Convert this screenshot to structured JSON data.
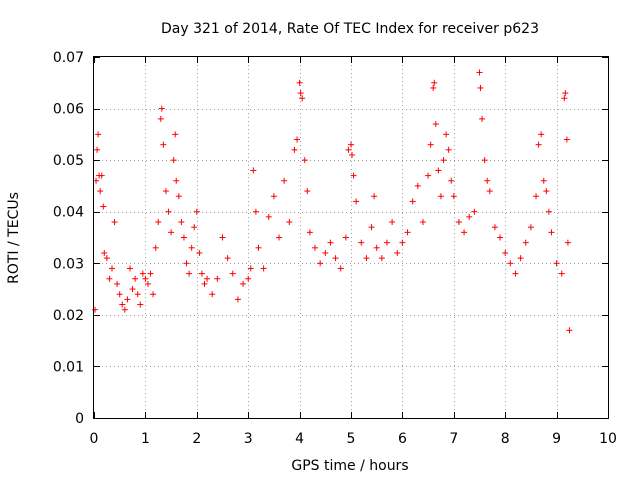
{
  "chart_data": {
    "type": "scatter",
    "title": "Day 321 of 2014, Rate Of TEC Index for receiver p623",
    "xlabel": "GPS time / hours",
    "ylabel": "ROTI / TECUs",
    "xlim": [
      0,
      10
    ],
    "ylim": [
      0,
      0.07
    ],
    "xticks": [
      0,
      1,
      2,
      3,
      4,
      5,
      6,
      7,
      8,
      9,
      10
    ],
    "yticks": [
      0,
      0.01,
      0.02,
      0.03,
      0.04,
      0.05,
      0.06,
      0.07
    ],
    "ytick_labels": [
      "0",
      "0.01",
      "0.02",
      "0.03",
      "0.04",
      "0.05",
      "0.06",
      "0.07"
    ],
    "grid": true,
    "marker": "+",
    "color": "#ff0000",
    "data_range_x": [
      0,
      9.25
    ],
    "series": [
      {
        "name": "ROTI",
        "points": [
          [
            0.02,
            0.021
          ],
          [
            0.04,
            0.046
          ],
          [
            0.06,
            0.052
          ],
          [
            0.08,
            0.055
          ],
          [
            0.1,
            0.047
          ],
          [
            0.12,
            0.044
          ],
          [
            0.15,
            0.047
          ],
          [
            0.18,
            0.041
          ],
          [
            0.2,
            0.032
          ],
          [
            0.25,
            0.031
          ],
          [
            0.3,
            0.027
          ],
          [
            0.35,
            0.029
          ],
          [
            0.4,
            0.038
          ],
          [
            0.45,
            0.026
          ],
          [
            0.5,
            0.024
          ],
          [
            0.55,
            0.022
          ],
          [
            0.6,
            0.021
          ],
          [
            0.65,
            0.023
          ],
          [
            0.7,
            0.029
          ],
          [
            0.75,
            0.025
          ],
          [
            0.8,
            0.027
          ],
          [
            0.85,
            0.024
          ],
          [
            0.9,
            0.022
          ],
          [
            0.95,
            0.028
          ],
          [
            1.0,
            0.027
          ],
          [
            1.05,
            0.026
          ],
          [
            1.1,
            0.028
          ],
          [
            1.15,
            0.024
          ],
          [
            1.2,
            0.033
          ],
          [
            1.25,
            0.038
          ],
          [
            1.3,
            0.058
          ],
          [
            1.32,
            0.06
          ],
          [
            1.35,
            0.053
          ],
          [
            1.4,
            0.044
          ],
          [
            1.45,
            0.04
          ],
          [
            1.5,
            0.036
          ],
          [
            1.55,
            0.05
          ],
          [
            1.58,
            0.055
          ],
          [
            1.6,
            0.046
          ],
          [
            1.65,
            0.043
          ],
          [
            1.7,
            0.038
          ],
          [
            1.75,
            0.035
          ],
          [
            1.8,
            0.03
          ],
          [
            1.85,
            0.028
          ],
          [
            1.9,
            0.033
          ],
          [
            1.95,
            0.037
          ],
          [
            2.0,
            0.04
          ],
          [
            2.05,
            0.032
          ],
          [
            2.1,
            0.028
          ],
          [
            2.15,
            0.026
          ],
          [
            2.2,
            0.027
          ],
          [
            2.3,
            0.024
          ],
          [
            2.4,
            0.027
          ],
          [
            2.5,
            0.035
          ],
          [
            2.6,
            0.031
          ],
          [
            2.7,
            0.028
          ],
          [
            2.8,
            0.023
          ],
          [
            2.9,
            0.026
          ],
          [
            3.0,
            0.027
          ],
          [
            3.05,
            0.029
          ],
          [
            3.1,
            0.048
          ],
          [
            3.15,
            0.04
          ],
          [
            3.2,
            0.033
          ],
          [
            3.3,
            0.029
          ],
          [
            3.4,
            0.039
          ],
          [
            3.5,
            0.043
          ],
          [
            3.6,
            0.035
          ],
          [
            3.7,
            0.046
          ],
          [
            3.8,
            0.038
          ],
          [
            3.9,
            0.052
          ],
          [
            3.95,
            0.054
          ],
          [
            4.0,
            0.065
          ],
          [
            4.02,
            0.063
          ],
          [
            4.05,
            0.062
          ],
          [
            4.1,
            0.05
          ],
          [
            4.15,
            0.044
          ],
          [
            4.2,
            0.036
          ],
          [
            4.3,
            0.033
          ],
          [
            4.4,
            0.03
          ],
          [
            4.5,
            0.032
          ],
          [
            4.6,
            0.034
          ],
          [
            4.7,
            0.031
          ],
          [
            4.8,
            0.029
          ],
          [
            4.9,
            0.035
          ],
          [
            4.95,
            0.052
          ],
          [
            5.0,
            0.053
          ],
          [
            5.02,
            0.051
          ],
          [
            5.05,
            0.047
          ],
          [
            5.1,
            0.042
          ],
          [
            5.2,
            0.034
          ],
          [
            5.3,
            0.031
          ],
          [
            5.4,
            0.037
          ],
          [
            5.45,
            0.043
          ],
          [
            5.5,
            0.033
          ],
          [
            5.6,
            0.031
          ],
          [
            5.7,
            0.034
          ],
          [
            5.8,
            0.038
          ],
          [
            5.9,
            0.032
          ],
          [
            6.0,
            0.034
          ],
          [
            6.1,
            0.036
          ],
          [
            6.2,
            0.042
          ],
          [
            6.3,
            0.045
          ],
          [
            6.4,
            0.038
          ],
          [
            6.5,
            0.047
          ],
          [
            6.55,
            0.053
          ],
          [
            6.6,
            0.064
          ],
          [
            6.62,
            0.065
          ],
          [
            6.65,
            0.057
          ],
          [
            6.7,
            0.048
          ],
          [
            6.75,
            0.043
          ],
          [
            6.8,
            0.05
          ],
          [
            6.85,
            0.055
          ],
          [
            6.9,
            0.052
          ],
          [
            6.95,
            0.046
          ],
          [
            7.0,
            0.043
          ],
          [
            7.1,
            0.038
          ],
          [
            7.2,
            0.036
          ],
          [
            7.3,
            0.039
          ],
          [
            7.4,
            0.04
          ],
          [
            7.5,
            0.067
          ],
          [
            7.52,
            0.064
          ],
          [
            7.55,
            0.058
          ],
          [
            7.6,
            0.05
          ],
          [
            7.65,
            0.046
          ],
          [
            7.7,
            0.044
          ],
          [
            7.8,
            0.037
          ],
          [
            7.9,
            0.035
          ],
          [
            8.0,
            0.032
          ],
          [
            8.1,
            0.03
          ],
          [
            8.2,
            0.028
          ],
          [
            8.3,
            0.031
          ],
          [
            8.4,
            0.034
          ],
          [
            8.5,
            0.037
          ],
          [
            8.6,
            0.043
          ],
          [
            8.65,
            0.053
          ],
          [
            8.7,
            0.055
          ],
          [
            8.75,
            0.046
          ],
          [
            8.8,
            0.044
          ],
          [
            8.85,
            0.04
          ],
          [
            8.9,
            0.036
          ],
          [
            9.0,
            0.03
          ],
          [
            9.1,
            0.028
          ],
          [
            9.15,
            0.062
          ],
          [
            9.17,
            0.063
          ],
          [
            9.2,
            0.054
          ],
          [
            9.22,
            0.034
          ],
          [
            9.25,
            0.017
          ]
        ]
      }
    ]
  }
}
